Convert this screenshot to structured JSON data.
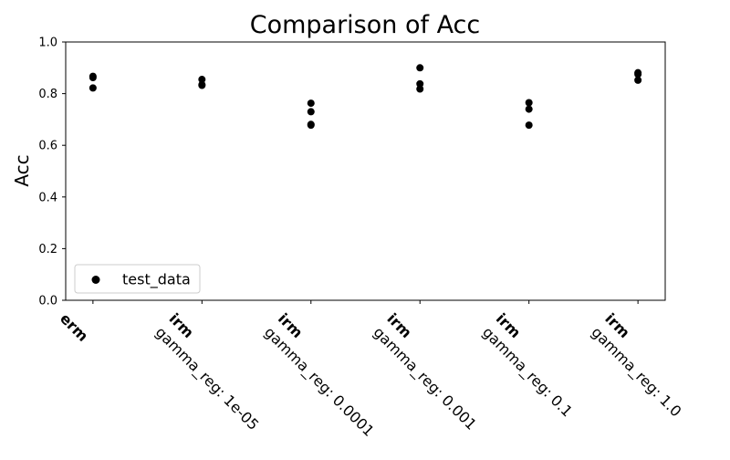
{
  "chart_data": {
    "type": "scatter",
    "title": "Comparison of Acc",
    "xlabel": "",
    "ylabel": "Acc",
    "ylim": [
      0.0,
      1.0
    ],
    "yticks": [
      "0.0",
      "0.2",
      "0.4",
      "0.6",
      "0.8",
      "1.0"
    ],
    "grid": false,
    "legend_position": "lower-left",
    "categories": [
      {
        "method": "erm",
        "param": ""
      },
      {
        "method": "irm",
        "param": "gamma_reg: 1e-05"
      },
      {
        "method": "irm",
        "param": "gamma_reg: 0.0001"
      },
      {
        "method": "irm",
        "param": "gamma_reg: 0.001"
      },
      {
        "method": "irm",
        "param": "gamma_reg: 0.1"
      },
      {
        "method": "irm",
        "param": "gamma_reg: 1.0"
      }
    ],
    "series": [
      {
        "name": "test_data",
        "color": "#000000",
        "points": [
          {
            "x": 0,
            "y": 0.867
          },
          {
            "x": 0,
            "y": 0.862
          },
          {
            "x": 0,
            "y": 0.822
          },
          {
            "x": 1,
            "y": 0.855
          },
          {
            "x": 1,
            "y": 0.835
          },
          {
            "x": 1,
            "y": 0.832
          },
          {
            "x": 2,
            "y": 0.763
          },
          {
            "x": 2,
            "y": 0.73
          },
          {
            "x": 2,
            "y": 0.681
          },
          {
            "x": 2,
            "y": 0.678
          },
          {
            "x": 3,
            "y": 0.9
          },
          {
            "x": 3,
            "y": 0.838
          },
          {
            "x": 3,
            "y": 0.818
          },
          {
            "x": 4,
            "y": 0.765
          },
          {
            "x": 4,
            "y": 0.74
          },
          {
            "x": 4,
            "y": 0.678
          },
          {
            "x": 5,
            "y": 0.881
          },
          {
            "x": 5,
            "y": 0.875
          },
          {
            "x": 5,
            "y": 0.852
          }
        ]
      }
    ]
  }
}
